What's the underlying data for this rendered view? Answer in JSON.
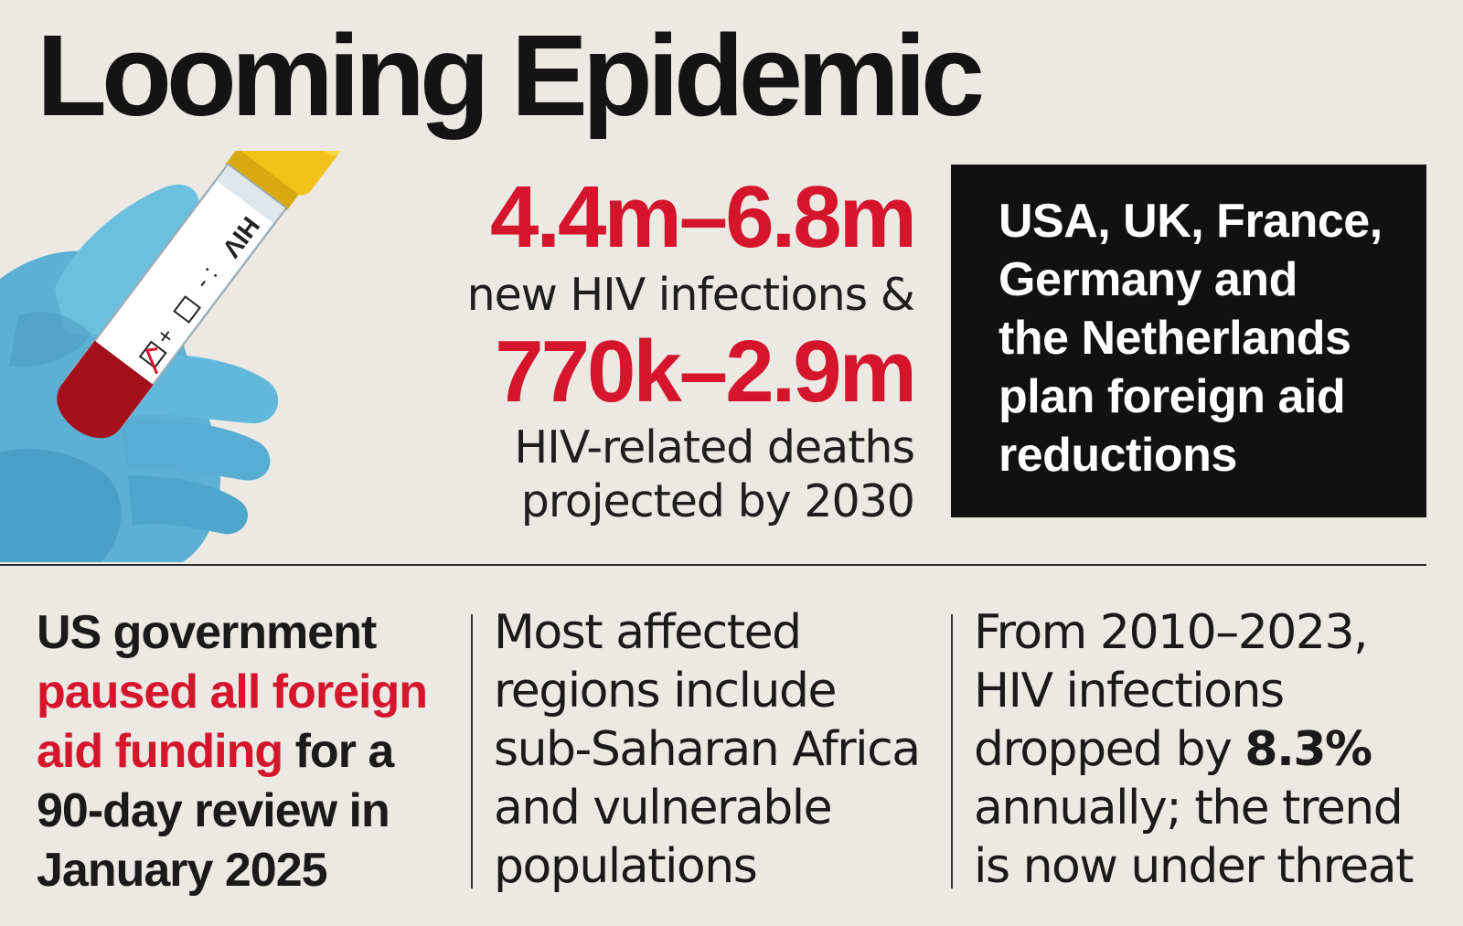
{
  "title": "Looming Epidemic",
  "stats": {
    "infections_range": "4.4m–6.8m",
    "infections_label": "new HIV infections &",
    "deaths_range": "770k–2.9m",
    "deaths_label_line1": "HIV-related deaths",
    "deaths_label_line2": "projected by 2030"
  },
  "callout": {
    "line1": "USA, UK, France,",
    "line2": "Germany and",
    "line3": "the Netherlands",
    "line4": "plan foreign aid",
    "line5": "reductions"
  },
  "tube_label": {
    "hiv": "HIV",
    "minus": ": -",
    "plus": "+"
  },
  "facts": {
    "col1": {
      "line1": "US government",
      "line2_red": "paused all foreign",
      "line3_red": "aid funding",
      "line3_rest": " for a",
      "line4": "90-day review in",
      "line5": "January 2025"
    },
    "col2": {
      "line1": "Most affected",
      "line2": "regions include",
      "line3": "sub-Saharan Africa",
      "line4": "and vulnerable",
      "line5": "populations"
    },
    "col3": {
      "line1": "From 2010–2023,",
      "line2": "HIV infections",
      "line3_pre": "dropped by ",
      "line3_bold": "8.3%",
      "line4": "annually; the trend",
      "line5": "is now under threat"
    }
  },
  "colors": {
    "accent_red": "#d4152b",
    "background": "#ece8e3",
    "glove_blue": "#5fb4d6",
    "cap_yellow": "#f2c21a",
    "box_black": "#111111"
  },
  "icons": [
    "gloved-hand-icon",
    "test-tube-icon"
  ]
}
